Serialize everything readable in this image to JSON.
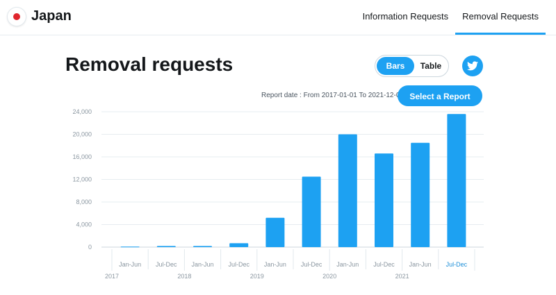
{
  "header": {
    "country": "Japan",
    "flag_icon": "japan-flag-icon",
    "tabs": [
      {
        "label": "Information Requests",
        "active": false
      },
      {
        "label": "Removal Requests",
        "active": true
      }
    ]
  },
  "page": {
    "title": "Removal requests",
    "toggle": {
      "bars_label": "Bars",
      "table_label": "Table",
      "selected": "Bars"
    },
    "twitter_icon": "twitter-bird-icon",
    "report_date": "Report date : From 2017-01-01 To 2021-12-01",
    "select_report_label": "Select a Report"
  },
  "colors": {
    "accent": "#1da1f2",
    "bar": "#1da1f2",
    "highlight_label": "#1d8fd8"
  },
  "chart_data": {
    "type": "bar",
    "title": "",
    "xlabel": "",
    "ylabel": "",
    "ylim": [
      0,
      24000
    ],
    "yticks": [
      0,
      4000,
      8000,
      12000,
      16000,
      20000,
      24000
    ],
    "ytick_labels": [
      "0",
      "4,000",
      "8,000",
      "12,000",
      "16,000",
      "20,000",
      "24,000"
    ],
    "categories": [
      "Jan-Jun",
      "Jul-Dec",
      "Jan-Jun",
      "Jul-Dec",
      "Jan-Jun",
      "Jul-Dec",
      "Jan-Jun",
      "Jul-Dec",
      "Jan-Jun",
      "Jul-Dec"
    ],
    "years": [
      "2017",
      "2018",
      "2019",
      "2020",
      "2021"
    ],
    "values": [
      100,
      200,
      200,
      700,
      5200,
      12500,
      20000,
      16600,
      18500,
      23600
    ],
    "highlight_category_index": 9,
    "grid": true
  }
}
